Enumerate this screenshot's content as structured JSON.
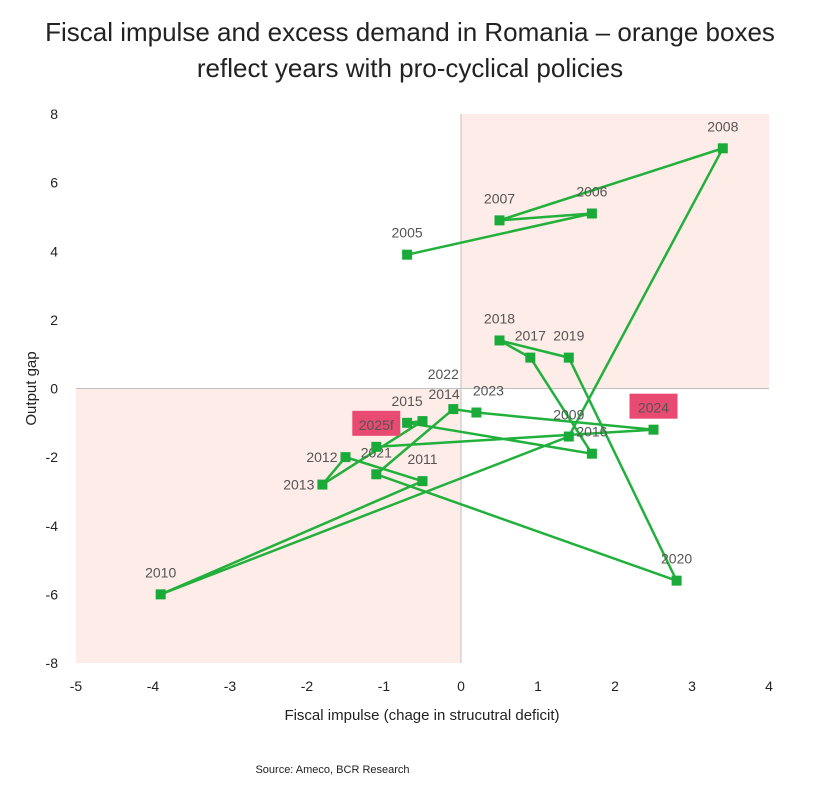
{
  "chart_data": {
    "type": "scatter",
    "title_line1": "Fiscal impulse and excess demand in Romania – orange boxes",
    "title_line2": "reflect years with pro-cyclical policies",
    "xlabel": "Fiscal impulse (chage in strucutral deficit)",
    "ylabel": "Output gap",
    "xlim": [
      -5,
      4
    ],
    "ylim": [
      -8,
      8
    ],
    "xticks": [
      -5,
      -4,
      -3,
      -2,
      -1,
      0,
      1,
      2,
      3,
      4
    ],
    "yticks": [
      -8,
      -6,
      -4,
      -2,
      0,
      2,
      4,
      6,
      8
    ],
    "grid": false,
    "connected": true,
    "shaded_quadrants": [
      "top-right",
      "bottom-left"
    ],
    "colors": {
      "line": "#22b03c",
      "marker": "#1aaa3a",
      "shade": "#fdece7",
      "highlight": "#e84a72"
    },
    "points": [
      {
        "label": "2005",
        "x": -0.7,
        "y": 3.9
      },
      {
        "label": "2006",
        "x": 1.7,
        "y": 5.1
      },
      {
        "label": "2007",
        "x": 0.5,
        "y": 4.9
      },
      {
        "label": "2008",
        "x": 3.4,
        "y": 7.0
      },
      {
        "label": "2009",
        "x": 1.4,
        "y": -1.4
      },
      {
        "label": "2010",
        "x": -3.9,
        "y": -6.0
      },
      {
        "label": "2011",
        "x": -0.5,
        "y": -2.7
      },
      {
        "label": "2012",
        "x": -1.5,
        "y": -2.0
      },
      {
        "label": "2013",
        "x": -1.8,
        "y": -2.8
      },
      {
        "label": "2014",
        "x": -0.5,
        "y": -0.95
      },
      {
        "label": "2015",
        "x": -0.7,
        "y": -1.0
      },
      {
        "label": "2016",
        "x": 1.7,
        "y": -1.9
      },
      {
        "label": "2018",
        "x": 0.5,
        "y": 1.4
      },
      {
        "label": "2017",
        "x": 0.9,
        "y": 0.9
      },
      {
        "label": "2019",
        "x": 1.4,
        "y": 0.9
      },
      {
        "label": "2020",
        "x": 2.8,
        "y": -5.6
      },
      {
        "label": "2021",
        "x": -1.1,
        "y": -2.5
      },
      {
        "label": "2022",
        "x": -0.1,
        "y": -0.6
      },
      {
        "label": "2023",
        "x": 0.2,
        "y": -0.7
      },
      {
        "label": "2024",
        "x": 2.5,
        "y": -1.2,
        "highlight": true
      },
      {
        "label": "2025f",
        "x": -1.1,
        "y": -1.7,
        "highlight": true
      }
    ],
    "order": [
      "2005",
      "2006",
      "2007",
      "2008",
      "2009",
      "2010",
      "2011",
      "2012",
      "2013",
      "2014",
      "2015",
      "2016",
      "2017",
      "2018",
      "2019",
      "2020",
      "2021",
      "2022",
      "2023",
      "2024",
      "2025f"
    ]
  },
  "source": "Source: Ameco, BCR Research"
}
